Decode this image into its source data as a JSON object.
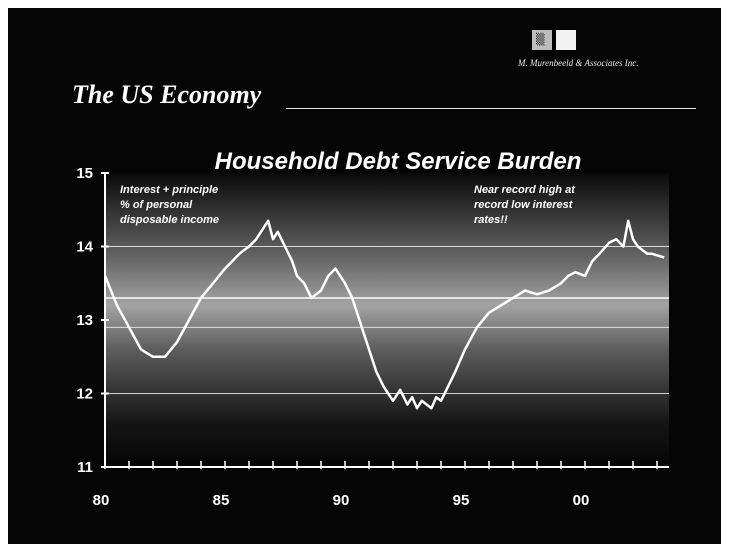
{
  "header": {
    "logo_glyph": "▒",
    "company": "M. Murenbeeld & Associates Inc.",
    "slide_title": "The US Economy"
  },
  "colors": {
    "background": "#050505",
    "line": "#ffffff",
    "band": "#9a9a9a"
  },
  "chart_data": {
    "type": "line",
    "title": "Household Debt Service Burden",
    "xlabel": "",
    "ylabel": "",
    "x_range": [
      1980,
      2003.5
    ],
    "ylim": [
      11,
      15
    ],
    "x_ticks": [
      "80",
      "85",
      "90",
      "95",
      "00"
    ],
    "x_tick_values": [
      1980,
      1985,
      1990,
      1995,
      2000
    ],
    "y_ticks": [
      "15",
      "14",
      "13",
      "12",
      "11"
    ],
    "y_tick_values": [
      15,
      14,
      13,
      12,
      11
    ],
    "grid": true,
    "annotations": [
      {
        "lines": [
          "Interest + principle",
          "% of personal",
          "disposable income"
        ]
      },
      {
        "lines": [
          "Near record high at",
          "record low interest",
          "rates!!"
        ]
      }
    ],
    "series": [
      {
        "x": [
          1980,
          1980.5,
          1981,
          1981.5,
          1982,
          1982.5,
          1983,
          1983.5,
          1984,
          1984.5,
          1985,
          1985.3,
          1985.6,
          1986,
          1986.3,
          1986.6,
          1986.8,
          1987,
          1987.2,
          1987.5,
          1987.8,
          1988,
          1988.3,
          1988.6,
          1989,
          1989.3,
          1989.6,
          1990,
          1990.3,
          1990.6,
          1991,
          1991.3,
          1991.6,
          1992,
          1992.3,
          1992.6,
          1992.8,
          1993,
          1993.2,
          1993.4,
          1993.6,
          1993.8,
          1994,
          1994.3,
          1994.6,
          1995,
          1995.5,
          1996,
          1996.5,
          1997,
          1997.5,
          1998,
          1998.5,
          1999,
          1999.3,
          1999.6,
          2000,
          2000.3,
          2000.6,
          2001,
          2001.3,
          2001.6,
          2001.8,
          2002,
          2002.2,
          2002.4,
          2002.6,
          2002.8,
          2003,
          2003.3
        ],
        "values": [
          13.6,
          13.2,
          12.9,
          12.6,
          12.5,
          12.5,
          12.7,
          13.0,
          13.3,
          13.5,
          13.7,
          13.8,
          13.9,
          14.0,
          14.1,
          14.25,
          14.35,
          14.1,
          14.2,
          14.0,
          13.8,
          13.6,
          13.5,
          13.3,
          13.4,
          13.6,
          13.7,
          13.5,
          13.3,
          13.0,
          12.6,
          12.3,
          12.1,
          11.9,
          12.05,
          11.85,
          11.95,
          11.8,
          11.9,
          11.85,
          11.8,
          11.95,
          11.9,
          12.1,
          12.3,
          12.6,
          12.9,
          13.1,
          13.2,
          13.3,
          13.4,
          13.35,
          13.4,
          13.5,
          13.6,
          13.65,
          13.6,
          13.8,
          13.9,
          14.05,
          14.1,
          14.0,
          14.35,
          14.1,
          14.0,
          13.95,
          13.9,
          13.9,
          13.88,
          13.85
        ]
      }
    ]
  }
}
